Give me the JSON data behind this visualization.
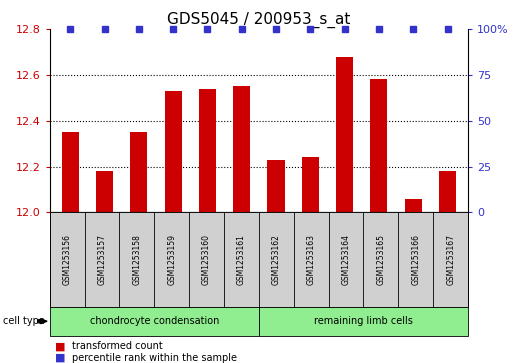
{
  "title": "GDS5045 / 200953_s_at",
  "samples": [
    "GSM1253156",
    "GSM1253157",
    "GSM1253158",
    "GSM1253159",
    "GSM1253160",
    "GSM1253161",
    "GSM1253162",
    "GSM1253163",
    "GSM1253164",
    "GSM1253165",
    "GSM1253166",
    "GSM1253167"
  ],
  "bar_values": [
    12.35,
    12.18,
    12.35,
    12.53,
    12.54,
    12.55,
    12.23,
    12.24,
    12.68,
    12.58,
    12.06,
    12.18
  ],
  "percentile_values": [
    100,
    100,
    100,
    100,
    100,
    100,
    100,
    100,
    100,
    100,
    100,
    100
  ],
  "bar_color": "#cc0000",
  "percentile_color": "#3333cc",
  "ylim_left": [
    12.0,
    12.8
  ],
  "ylim_right": [
    0,
    100
  ],
  "yticks_left": [
    12.0,
    12.2,
    12.4,
    12.6,
    12.8
  ],
  "yticks_right": [
    0,
    25,
    50,
    75,
    100
  ],
  "groups": [
    {
      "label": "chondrocyte condensation",
      "n": 6,
      "color": "#90ee90"
    },
    {
      "label": "remaining limb cells",
      "n": 6,
      "color": "#90ee90"
    }
  ],
  "cell_type_label": "cell type",
  "legend_bar_label": "transformed count",
  "legend_pct_label": "percentile rank within the sample",
  "bar_width": 0.5,
  "grid_color": "#000000",
  "background_color": "#ffffff",
  "axes_label_color_left": "#cc0000",
  "axes_label_color_right": "#3333cc",
  "label_box_color": "#d0d0d0",
  "title_fontsize": 11
}
